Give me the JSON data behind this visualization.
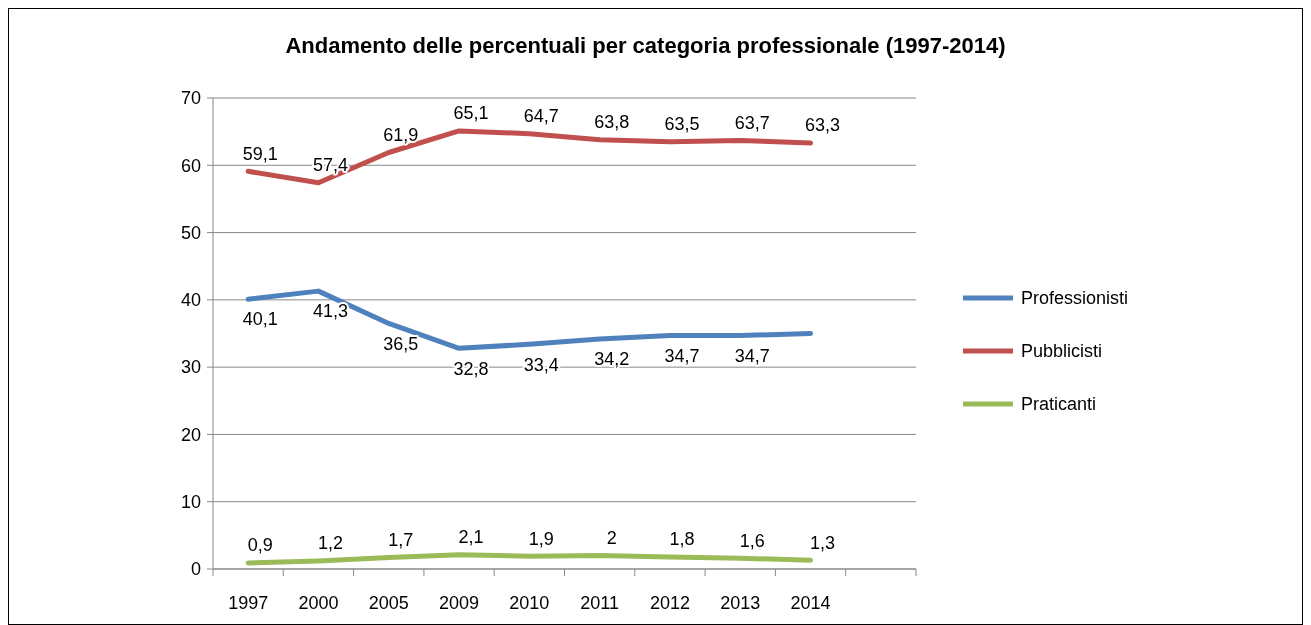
{
  "chart_data": {
    "type": "line",
    "title": "Andamento delle percentuali per categoria professionale (1997-2014)",
    "categories": [
      "1997",
      "2000",
      "2005",
      "2009",
      "2010",
      "2011",
      "2012",
      "2013",
      "2014",
      null
    ],
    "series": [
      {
        "name": "Professionisti",
        "color": "#4f81bd",
        "values": [
          40.1,
          41.3,
          36.5,
          32.8,
          33.4,
          34.2,
          34.7,
          34.7,
          35.0,
          null
        ],
        "value_labels": [
          "40,1",
          "41,3",
          "36,5",
          "32,8",
          "33,4",
          "34,2",
          "34,7",
          "34,7",
          null,
          null
        ]
      },
      {
        "name": "Pubblicisti",
        "color": "#c0504d",
        "values": [
          59.1,
          57.4,
          61.9,
          65.1,
          64.7,
          63.8,
          63.5,
          63.7,
          63.3,
          null
        ],
        "value_labels": [
          "59,1",
          "57,4",
          "61,9",
          "65,1",
          "64,7",
          "63,8",
          "63,5",
          "63,7",
          "63,3",
          null
        ]
      },
      {
        "name": "Praticanti",
        "color": "#9bbb59",
        "values": [
          0.9,
          1.2,
          1.7,
          2.1,
          1.9,
          2,
          1.8,
          1.6,
          1.3,
          null
        ],
        "value_labels": [
          "0,9",
          "1,2",
          "1,7",
          "2,1",
          "1,9",
          "2",
          "1,8",
          "1,6",
          "1,3",
          null
        ]
      }
    ],
    "ylim": [
      0,
      70
    ],
    "yticks": [
      0,
      10,
      20,
      30,
      40,
      50,
      60,
      70
    ],
    "grid": "y",
    "legend": "right",
    "marker": "none",
    "line_style": "solid"
  }
}
